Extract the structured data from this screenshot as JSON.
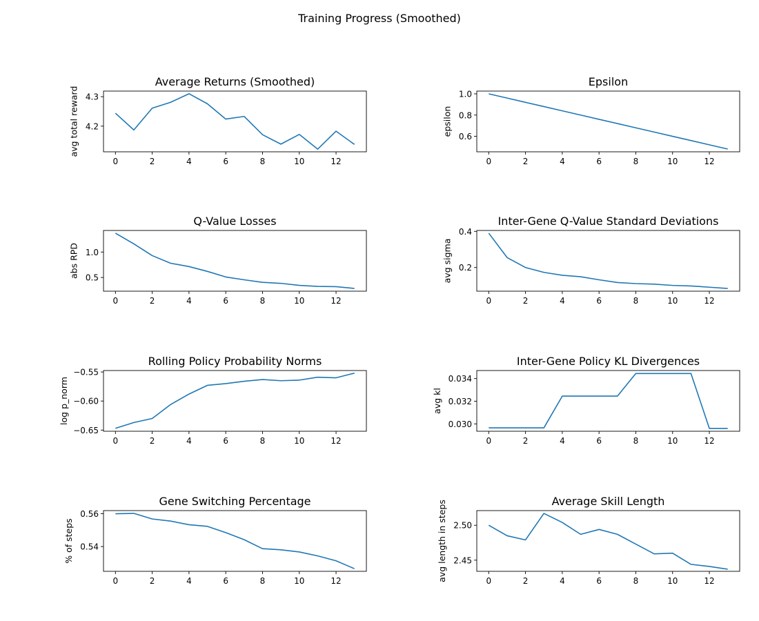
{
  "figure": {
    "title": "Training Progress (Smoothed)"
  },
  "colors": {
    "line": "#1f77b4",
    "axis": "#000000",
    "background": "#ffffff"
  },
  "chart_data": [
    {
      "type": "line",
      "title": "Average Returns (Smoothed)",
      "xlabel": "",
      "ylabel": "avg total reward",
      "x": [
        0,
        1,
        2,
        3,
        4,
        5,
        6,
        7,
        8,
        9,
        10,
        11,
        12,
        13
      ],
      "values": [
        4.244,
        4.187,
        4.261,
        4.281,
        4.31,
        4.276,
        4.224,
        4.233,
        4.171,
        4.139,
        4.172,
        4.122,
        4.183,
        4.138
      ],
      "xlim": [
        -0.65,
        13.65
      ],
      "ylim": [
        4.113,
        4.319
      ],
      "xticks": [
        0,
        2,
        4,
        6,
        8,
        10,
        12
      ],
      "xtick_labels": [
        "0",
        "2",
        "4",
        "6",
        "8",
        "10",
        "12"
      ],
      "yticks": [
        4.2,
        4.3
      ],
      "ytick_labels": [
        "4.2",
        "4.3"
      ]
    },
    {
      "type": "line",
      "title": "Epsilon",
      "xlabel": "",
      "ylabel": "epsilon",
      "x": [
        0,
        1,
        2,
        3,
        4,
        5,
        6,
        7,
        8,
        9,
        10,
        11,
        12,
        13
      ],
      "values": [
        1.0,
        0.96,
        0.92,
        0.88,
        0.84,
        0.8,
        0.76,
        0.72,
        0.68,
        0.64,
        0.6,
        0.56,
        0.52,
        0.48
      ],
      "xlim": [
        -0.65,
        13.65
      ],
      "ylim": [
        0.454,
        1.026
      ],
      "xticks": [
        0,
        2,
        4,
        6,
        8,
        10,
        12
      ],
      "xtick_labels": [
        "0",
        "2",
        "4",
        "6",
        "8",
        "10",
        "12"
      ],
      "yticks": [
        0.6,
        0.8,
        1.0
      ],
      "ytick_labels": [
        "0.6",
        "0.8",
        "1.0"
      ]
    },
    {
      "type": "line",
      "title": "Q-Value Losses",
      "xlabel": "",
      "ylabel": "abs RPD",
      "x": [
        0,
        1,
        2,
        3,
        4,
        5,
        6,
        7,
        8,
        9,
        10,
        11,
        12,
        13
      ],
      "values": [
        1.37,
        1.16,
        0.93,
        0.78,
        0.715,
        0.62,
        0.51,
        0.455,
        0.405,
        0.385,
        0.345,
        0.325,
        0.32,
        0.285
      ],
      "xlim": [
        -0.65,
        13.65
      ],
      "ylim": [
        0.231,
        1.424
      ],
      "xticks": [
        0,
        2,
        4,
        6,
        8,
        10,
        12
      ],
      "xtick_labels": [
        "0",
        "2",
        "4",
        "6",
        "8",
        "10",
        "12"
      ],
      "yticks": [
        0.5,
        1.0
      ],
      "ytick_labels": [
        "0.5",
        "1.0"
      ]
    },
    {
      "type": "line",
      "title": "Inter-Gene Q-Value Standard Deviations",
      "xlabel": "",
      "ylabel": "avg sigma",
      "x": [
        0,
        1,
        2,
        3,
        4,
        5,
        6,
        7,
        8,
        9,
        10,
        11,
        12,
        13
      ],
      "values": [
        0.39,
        0.255,
        0.2,
        0.173,
        0.157,
        0.149,
        0.132,
        0.117,
        0.111,
        0.108,
        0.101,
        0.098,
        0.091,
        0.084
      ],
      "xlim": [
        -0.65,
        13.65
      ],
      "ylim": [
        0.069,
        0.405
      ],
      "xticks": [
        0,
        2,
        4,
        6,
        8,
        10,
        12
      ],
      "xtick_labels": [
        "0",
        "2",
        "4",
        "6",
        "8",
        "10",
        "12"
      ],
      "yticks": [
        0.2,
        0.4
      ],
      "ytick_labels": [
        "0.2",
        "0.4"
      ]
    },
    {
      "type": "line",
      "title": "Rolling Policy Probability Norms",
      "xlabel": "",
      "ylabel": "log p_norm",
      "x": [
        0,
        1,
        2,
        3,
        4,
        5,
        6,
        7,
        8,
        9,
        10,
        11,
        12,
        13
      ],
      "values": [
        -0.647,
        -0.637,
        -0.63,
        -0.606,
        -0.588,
        -0.573,
        -0.57,
        -0.566,
        -0.563,
        -0.565,
        -0.564,
        -0.559,
        -0.56,
        -0.552
      ],
      "xlim": [
        -0.65,
        13.65
      ],
      "ylim": [
        -0.652,
        -0.5475
      ],
      "xticks": [
        0,
        2,
        4,
        6,
        8,
        10,
        12
      ],
      "xtick_labels": [
        "0",
        "2",
        "4",
        "6",
        "8",
        "10",
        "12"
      ],
      "yticks": [
        -0.65,
        -0.6,
        -0.55
      ],
      "ytick_labels": [
        "−0.65",
        "−0.60",
        "−0.55"
      ]
    },
    {
      "type": "line",
      "title": "Inter-Gene Policy KL Divergences",
      "xlabel": "",
      "ylabel": "avg kl",
      "x": [
        0,
        1,
        2,
        3,
        4,
        5,
        6,
        7,
        8,
        9,
        10,
        11,
        12,
        13
      ],
      "values": [
        0.02965,
        0.02965,
        0.02965,
        0.02965,
        0.03245,
        0.03245,
        0.03245,
        0.03245,
        0.03445,
        0.03445,
        0.03445,
        0.03445,
        0.0296,
        0.0296
      ],
      "xlim": [
        -0.65,
        13.65
      ],
      "ylim": [
        0.02935,
        0.03471
      ],
      "xticks": [
        0,
        2,
        4,
        6,
        8,
        10,
        12
      ],
      "xtick_labels": [
        "0",
        "2",
        "4",
        "6",
        "8",
        "10",
        "12"
      ],
      "yticks": [
        0.03,
        0.032,
        0.034
      ],
      "ytick_labels": [
        "0.030",
        "0.032",
        "0.034"
      ]
    },
    {
      "type": "line",
      "title": "Gene Switching Percentage",
      "xlabel": "",
      "ylabel": "% of steps",
      "x": [
        0,
        1,
        2,
        3,
        4,
        5,
        6,
        7,
        8,
        9,
        10,
        11,
        12,
        13
      ],
      "values": [
        0.56,
        0.5602,
        0.5568,
        0.5555,
        0.5533,
        0.5523,
        0.5485,
        0.5442,
        0.5387,
        0.538,
        0.5367,
        0.5343,
        0.5313,
        0.5265
      ],
      "xlim": [
        -0.65,
        13.65
      ],
      "ylim": [
        0.5249,
        0.5619
      ],
      "xticks": [
        0,
        2,
        4,
        6,
        8,
        10,
        12
      ],
      "xtick_labels": [
        "0",
        "2",
        "4",
        "6",
        "8",
        "10",
        "12"
      ],
      "yticks": [
        0.54,
        0.56
      ],
      "ytick_labels": [
        "0.54",
        "0.56"
      ]
    },
    {
      "type": "line",
      "title": "Average Skill Length",
      "xlabel": "",
      "ylabel": "avg length in steps",
      "x": [
        0,
        1,
        2,
        3,
        4,
        5,
        6,
        7,
        8,
        9,
        10,
        11,
        12,
        13
      ],
      "values": [
        2.5,
        2.485,
        2.479,
        2.517,
        2.504,
        2.487,
        2.494,
        2.487,
        2.473,
        2.459,
        2.46,
        2.444,
        2.441,
        2.437
      ],
      "xlim": [
        -0.65,
        13.65
      ],
      "ylim": [
        2.434,
        2.521
      ],
      "xticks": [
        0,
        2,
        4,
        6,
        8,
        10,
        12
      ],
      "xtick_labels": [
        "0",
        "2",
        "4",
        "6",
        "8",
        "10",
        "12"
      ],
      "yticks": [
        2.45,
        2.5
      ],
      "ytick_labels": [
        "2.45",
        "2.50"
      ]
    }
  ]
}
